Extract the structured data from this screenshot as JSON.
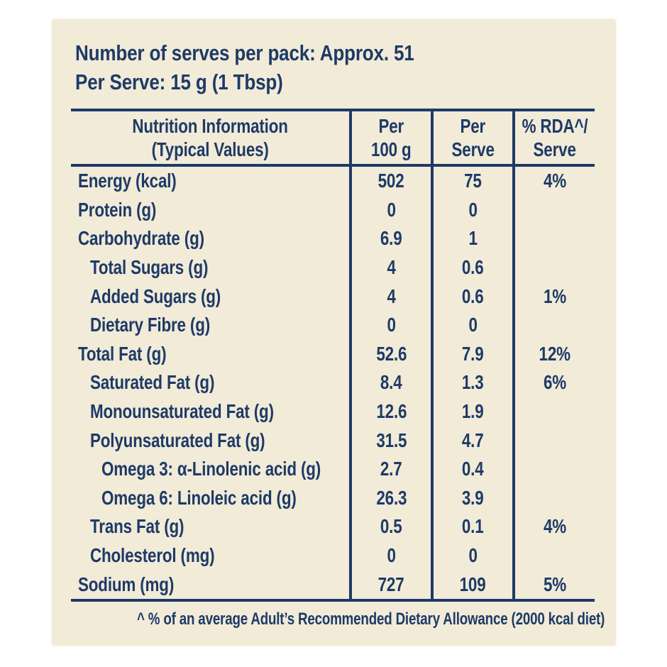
{
  "colors": {
    "page_background": "#ffffff",
    "panel_background": "#f1ebd8",
    "text_navy": "#1e3a67"
  },
  "pack_info": {
    "serves_line": "Number of serves per pack: Approx. 51",
    "serve_size_line": "Per Serve: 15 g (1 Tbsp)"
  },
  "table": {
    "header": {
      "col_nutrition": {
        "line1": "Nutrition Information",
        "line2": "(Typical Values)"
      },
      "col_per_100g": {
        "line1": "Per",
        "line2": "100 g"
      },
      "col_per_serve": {
        "line1": "Per",
        "line2": "Serve"
      },
      "col_rda": {
        "line1": "% RDA^/",
        "line2": "Serve"
      }
    },
    "rows": [
      {
        "label": "Energy (kcal)",
        "indent": 0,
        "per_100g": "502",
        "per_serve": "75",
        "rda_serve": "4%"
      },
      {
        "label": "Protein (g)",
        "indent": 0,
        "per_100g": "0",
        "per_serve": "0",
        "rda_serve": ""
      },
      {
        "label": "Carbohydrate (g)",
        "indent": 0,
        "per_100g": "6.9",
        "per_serve": "1",
        "rda_serve": ""
      },
      {
        "label": "Total Sugars (g)",
        "indent": 1,
        "per_100g": "4",
        "per_serve": "0.6",
        "rda_serve": ""
      },
      {
        "label": "Added Sugars (g)",
        "indent": 1,
        "per_100g": "4",
        "per_serve": "0.6",
        "rda_serve": "1%"
      },
      {
        "label": "Dietary Fibre (g)",
        "indent": 1,
        "per_100g": "0",
        "per_serve": "0",
        "rda_serve": ""
      },
      {
        "label": "Total Fat (g)",
        "indent": 0,
        "per_100g": "52.6",
        "per_serve": "7.9",
        "rda_serve": "12%"
      },
      {
        "label": "Saturated Fat (g)",
        "indent": 1,
        "per_100g": "8.4",
        "per_serve": "1.3",
        "rda_serve": "6%"
      },
      {
        "label": "Monounsaturated Fat (g)",
        "indent": 1,
        "per_100g": "12.6",
        "per_serve": "1.9",
        "rda_serve": ""
      },
      {
        "label": "Polyunsaturated Fat (g)",
        "indent": 1,
        "per_100g": "31.5",
        "per_serve": "4.7",
        "rda_serve": ""
      },
      {
        "label": "Omega 3: α-Linolenic acid (g)",
        "indent": 2,
        "per_100g": "2.7",
        "per_serve": "0.4",
        "rda_serve": ""
      },
      {
        "label": "Omega 6: Linoleic acid (g)",
        "indent": 2,
        "per_100g": "26.3",
        "per_serve": "3.9",
        "rda_serve": ""
      },
      {
        "label": "Trans Fat (g)",
        "indent": 1,
        "per_100g": "0.5",
        "per_serve": "0.1",
        "rda_serve": "4%"
      },
      {
        "label": "Cholesterol (mg)",
        "indent": 1,
        "per_100g": "0",
        "per_serve": "0",
        "rda_serve": ""
      },
      {
        "label": "Sodium (mg)",
        "indent": 0,
        "per_100g": "727",
        "per_serve": "109",
        "rda_serve": "5%"
      }
    ]
  },
  "footnote": "^ % of an average Adult’s Recommended Dietary Allowance (2000 kcal diet)"
}
